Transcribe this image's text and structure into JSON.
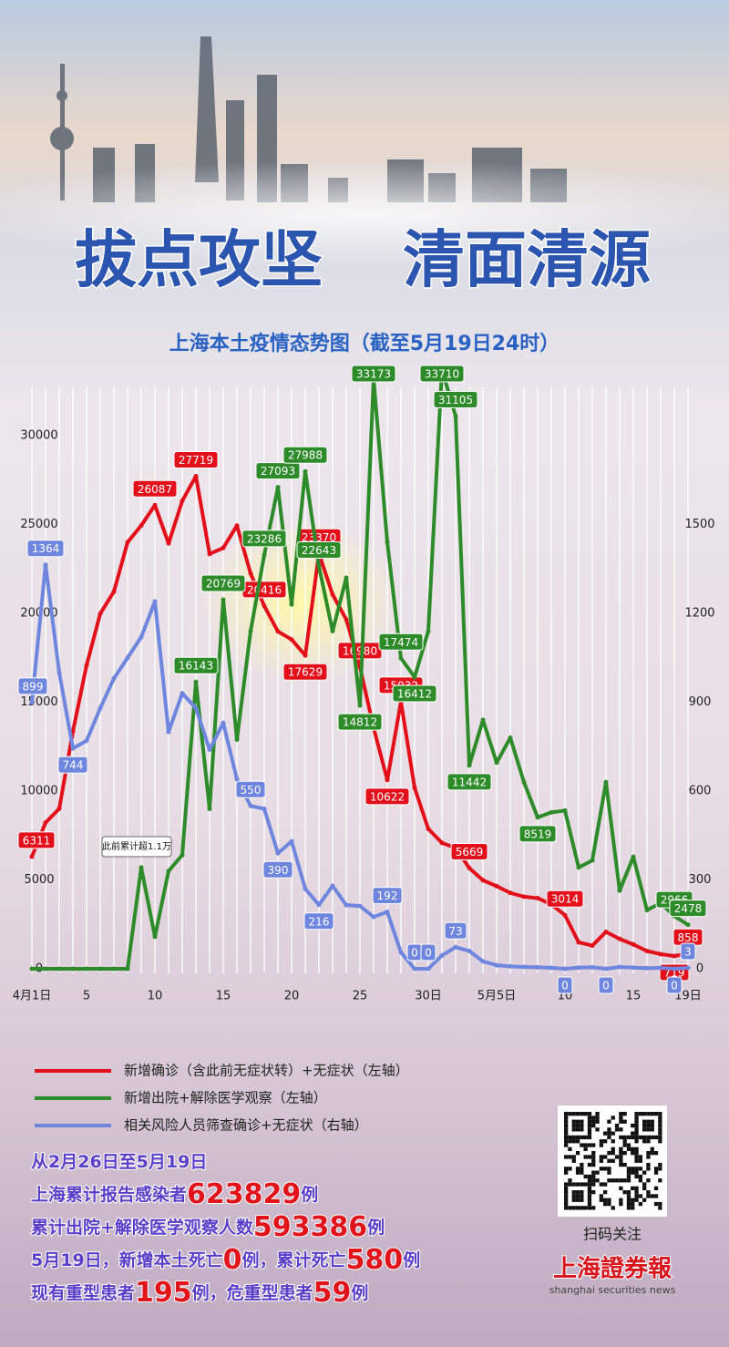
{
  "header": {
    "title_left": "拔点攻坚",
    "title_right": "清面清源"
  },
  "chart_data": {
    "type": "line",
    "title": "上海本土疫情态势图（截至5月19日24时）",
    "categories": [
      "4月1日",
      null,
      null,
      null,
      "5",
      null,
      null,
      null,
      null,
      "10",
      null,
      null,
      null,
      null,
      "15",
      null,
      null,
      null,
      null,
      "20",
      null,
      null,
      null,
      null,
      "25",
      null,
      null,
      null,
      null,
      "30日",
      null,
      null,
      null,
      null,
      "5月5日",
      null,
      null,
      null,
      null,
      "10",
      null,
      null,
      null,
      null,
      "15",
      null,
      null,
      null,
      "19日"
    ],
    "series": [
      {
        "name": "新增确诊（含此前无症状转）+无症状（左轴）",
        "color": "#e3101c",
        "values": [
          6311,
          8226,
          9006,
          13354,
          17077,
          19982,
          21222,
          24001,
          24944,
          26087,
          23937,
          26330,
          27719,
          23342,
          23680,
          24939,
          22248,
          20416,
          18979,
          18528,
          17629,
          23370,
          21058,
          19657,
          16980,
          13562,
          10622,
          15032,
          10181,
          7872,
          7084,
          6804,
          5669,
          4982,
          4651,
          4269,
          4058,
          3975,
          3625,
          3014,
          1487,
          1305,
          2078,
          1681,
          1369,
          1000,
          823,
          719,
          858
        ],
        "value_labels": [
          "6311",
          null,
          null,
          null,
          null,
          null,
          null,
          null,
          null,
          "26087",
          null,
          null,
          "27719",
          null,
          null,
          null,
          null,
          "20416",
          null,
          null,
          "17629",
          "23370",
          null,
          null,
          "16980",
          null,
          "10622",
          "15032",
          null,
          null,
          null,
          null,
          "5669",
          null,
          null,
          null,
          null,
          null,
          null,
          "3014",
          null,
          null,
          null,
          null,
          null,
          null,
          null,
          "719",
          "858"
        ]
      },
      {
        "name": "新增出院+解除医学观察（左轴）",
        "color": "#2e8b2a",
        "values": [
          0,
          0,
          0,
          0,
          0,
          0,
          0,
          0,
          5700,
          1800,
          5500,
          6400,
          16143,
          9000,
          20769,
          12900,
          19000,
          23286,
          27093,
          20500,
          27988,
          22643,
          19000,
          22000,
          14812,
          33173,
          24000,
          17474,
          16412,
          19000,
          33710,
          31105,
          11442,
          14000,
          11600,
          13000,
          10500,
          8519,
          8800,
          8900,
          5700,
          6100,
          10500,
          4400,
          6300,
          3300,
          3700,
          2966,
          2478
        ],
        "value_labels": [
          null,
          null,
          null,
          null,
          null,
          null,
          null,
          null,
          null,
          null,
          null,
          null,
          "16143",
          null,
          "20769",
          null,
          null,
          "23286",
          "27093",
          null,
          "27988",
          "22643",
          null,
          null,
          "14812",
          "33173",
          null,
          "17474",
          "16412",
          null,
          "33710",
          "31105",
          "11442",
          null,
          null,
          null,
          null,
          "8519",
          null,
          null,
          null,
          null,
          null,
          null,
          null,
          null,
          null,
          "2966",
          "2478"
        ]
      },
      {
        "name": "相关风险人员筛查确诊+无症状（右轴）",
        "color": "#6f86de",
        "axis": "y2",
        "values": [
          899,
          1364,
          1000,
          744,
          770,
          880,
          980,
          1050,
          1120,
          1240,
          800,
          930,
          880,
          740,
          830,
          640,
          550,
          540,
          390,
          430,
          270,
          216,
          280,
          215,
          212,
          175,
          192,
          55,
          0,
          0,
          45,
          73,
          60,
          25,
          12,
          8,
          6,
          5,
          3,
          0,
          4,
          5,
          0,
          6,
          4,
          2,
          3,
          0,
          3
        ],
        "value_labels": [
          "899",
          "1364",
          null,
          "744",
          null,
          null,
          null,
          null,
          null,
          null,
          null,
          null,
          null,
          null,
          null,
          null,
          "550",
          null,
          "390",
          null,
          null,
          "216",
          null,
          null,
          null,
          null,
          "192",
          null,
          "0",
          "0",
          null,
          "73",
          null,
          null,
          null,
          null,
          null,
          null,
          null,
          "0",
          null,
          null,
          "0",
          null,
          null,
          null,
          null,
          "0",
          "3"
        ]
      }
    ],
    "ylim": [
      0,
      34000
    ],
    "yticks": [
      0,
      5000,
      10000,
      15000,
      20000,
      25000,
      30000
    ],
    "y2lim": [
      0,
      2040
    ],
    "y2ticks": [
      0,
      300,
      600,
      900,
      1200,
      1500
    ],
    "grid": true,
    "annotation": "此前累计超1.1万"
  },
  "stats": [
    [
      "从2月26日至5月19日"
    ],
    [
      "上海累计报告感染者",
      "623829",
      "例"
    ],
    [
      "累计出院+解除医学观察人数",
      "593386",
      "例"
    ],
    [
      "5月19日，新增本土死亡",
      "0",
      "例，累计死亡",
      "580",
      "例"
    ],
    [
      "现有重型患者",
      "195",
      "例，危重型患者",
      "59",
      "例"
    ]
  ],
  "footer": {
    "qr_caption": "扫码关注",
    "logo": "上海證券報",
    "logo_en": "shanghai securities news"
  }
}
